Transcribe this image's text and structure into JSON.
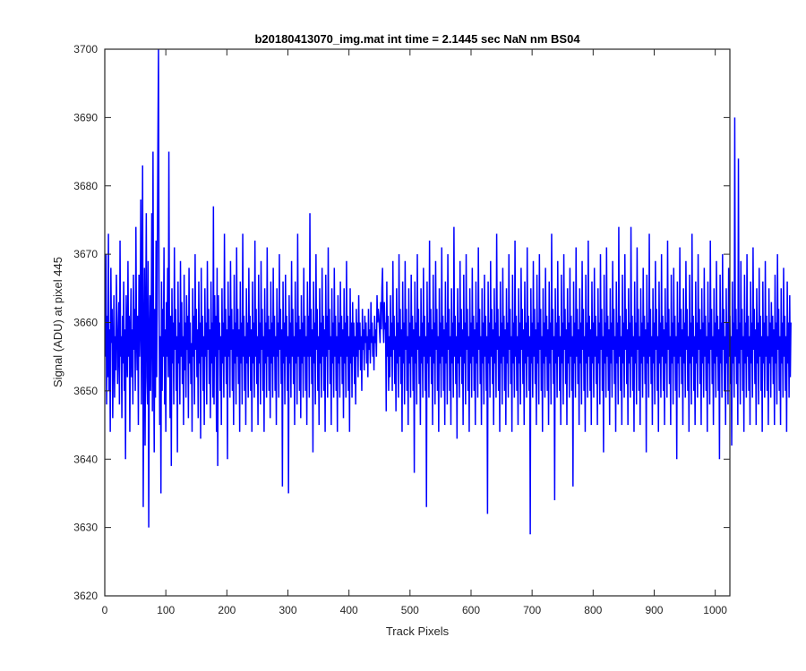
{
  "chart_data": {
    "type": "line",
    "title": "b20180413070_img.mat int time = 2.1445 sec  NaN nm BS04",
    "xlabel": "Track Pixels",
    "ylabel": "Signal (ADU) at pixel 445",
    "xlim": [
      0,
      1024
    ],
    "ylim": [
      3620,
      3700
    ],
    "x_ticks": [
      0,
      100,
      200,
      300,
      400,
      500,
      600,
      700,
      800,
      900,
      1000
    ],
    "y_ticks": [
      3620,
      3630,
      3640,
      3650,
      3660,
      3670,
      3680,
      3690,
      3700
    ],
    "grid": false,
    "legend": "none",
    "line_color": "#0000ff",
    "series": [
      {
        "x_start": 1,
        "x_step": 1,
        "values": [
          3655,
          3670,
          3648,
          3661,
          3652,
          3673,
          3650,
          3659,
          3644,
          3668,
          3657,
          3662,
          3646,
          3656,
          3664,
          3649,
          3658,
          3653,
          3667,
          3660,
          3651,
          3657,
          3663,
          3648,
          3672,
          3655,
          3658,
          3646,
          3661,
          3654,
          3666,
          3650,
          3659,
          3640,
          3664,
          3657,
          3652,
          3669,
          3655,
          3661,
          3644,
          3658,
          3665,
          3652,
          3659,
          3648,
          3667,
          3656,
          3662,
          3650,
          3674,
          3658,
          3653,
          3661,
          3645,
          3667,
          3655,
          3660,
          3678,
          3648,
          3664,
          3683,
          3633,
          3655,
          3668,
          3642,
          3660,
          3676,
          3652,
          3648,
          3669,
          3630,
          3658,
          3664,
          3650,
          3659,
          3676,
          3647,
          3685,
          3655,
          3641,
          3662,
          3649,
          3672,
          3652,
          3668,
          3686,
          3700,
          3661,
          3645,
          3658,
          3635,
          3666,
          3650,
          3662,
          3655,
          3671,
          3648,
          3659,
          3644,
          3663,
          3655,
          3668,
          3652,
          3685,
          3658,
          3646,
          3661,
          3639,
          3665,
          3654,
          3660,
          3648,
          3671,
          3656,
          3662,
          3650,
          3658,
          3641,
          3666,
          3654,
          3660,
          3648,
          3669,
          3655,
          3663,
          3651,
          3658,
          3645,
          3667,
          3653,
          3660,
          3649,
          3664,
          3656,
          3661,
          3646,
          3668,
          3654,
          3660,
          3651,
          3657,
          3644,
          3665,
          3655,
          3661,
          3648,
          3670,
          3656,
          3662,
          3652,
          3659,
          3646,
          3666,
          3654,
          3660,
          3643,
          3668,
          3655,
          3661,
          3650,
          3658,
          3645,
          3665,
          3655,
          3660,
          3648,
          3669,
          3656,
          3662,
          3651,
          3659,
          3646,
          3666,
          3654,
          3660,
          3649,
          3677,
          3648,
          3664,
          3655,
          3661,
          3644,
          3668,
          3639,
          3664,
          3656,
          3660,
          3650,
          3658,
          3645,
          3665,
          3654,
          3660,
          3649,
          3673,
          3655,
          3662,
          3651,
          3659,
          3640,
          3666,
          3655,
          3661,
          3649,
          3669,
          3656,
          3662,
          3650,
          3659,
          3645,
          3667,
          3654,
          3660,
          3648,
          3671,
          3655,
          3662,
          3651,
          3659,
          3644,
          3666,
          3654,
          3660,
          3648,
          3673,
          3655,
          3661,
          3650,
          3658,
          3645,
          3665,
          3654,
          3660,
          3649,
          3668,
          3655,
          3661,
          3650,
          3659,
          3644,
          3666,
          3654,
          3660,
          3649,
          3672,
          3655,
          3662,
          3651,
          3658,
          3645,
          3667,
          3654,
          3660,
          3648,
          3669,
          3656,
          3662,
          3650,
          3658,
          3644,
          3665,
          3654,
          3660,
          3649,
          3671,
          3655,
          3661,
          3650,
          3659,
          3646,
          3666,
          3654,
          3660,
          3649,
          3668,
          3655,
          3661,
          3650,
          3658,
          3645,
          3665,
          3655,
          3660,
          3649,
          3670,
          3656,
          3662,
          3651,
          3659,
          3636,
          3666,
          3654,
          3660,
          3648,
          3667,
          3655,
          3661,
          3650,
          3658,
          3635,
          3664,
          3654,
          3660,
          3649,
          3669,
          3655,
          3662,
          3651,
          3658,
          3645,
          3666,
          3654,
          3660,
          3648,
          3673,
          3655,
          3661,
          3650,
          3659,
          3646,
          3664,
          3654,
          3660,
          3649,
          3668,
          3655,
          3661,
          3650,
          3658,
          3645,
          3666,
          3655,
          3661,
          3649,
          3676,
          3655,
          3662,
          3651,
          3659,
          3641,
          3666,
          3654,
          3660,
          3648,
          3670,
          3656,
          3662,
          3650,
          3658,
          3645,
          3665,
          3654,
          3660,
          3649,
          3668,
          3655,
          3661,
          3650,
          3659,
          3644,
          3667,
          3655,
          3661,
          3649,
          3671,
          3656,
          3662,
          3651,
          3658,
          3645,
          3665,
          3654,
          3660,
          3649,
          3668,
          3655,
          3661,
          3650,
          3658,
          3644,
          3664,
          3654,
          3660,
          3649,
          3666,
          3655,
          3661,
          3651,
          3659,
          3646,
          3665,
          3654,
          3660,
          3649,
          3669,
          3655,
          3661,
          3650,
          3658,
          3644,
          3665,
          3654,
          3660,
          3649,
          3663,
          3655,
          3660,
          3651,
          3658,
          3648,
          3662,
          3655,
          3660,
          3652,
          3664,
          3656,
          3660,
          3653,
          3658,
          3650,
          3662,
          3656,
          3659,
          3653,
          3661,
          3657,
          3660,
          3654,
          3658,
          3652,
          3662,
          3656,
          3659,
          3654,
          3663,
          3657,
          3660,
          3655,
          3658,
          3653,
          3661,
          3657,
          3659,
          3655,
          3664,
          3660,
          3662,
          3661,
          3659,
          3657,
          3663,
          3659,
          3665,
          3668,
          3660,
          3657,
          3663,
          3659,
          3660,
          3647,
          3666,
          3655,
          3661,
          3650,
          3658,
          3652,
          3664,
          3655,
          3660,
          3650,
          3669,
          3656,
          3661,
          3651,
          3658,
          3647,
          3665,
          3654,
          3660,
          3649,
          3670,
          3655,
          3662,
          3651,
          3659,
          3644,
          3666,
          3654,
          3660,
          3648,
          3669,
          3656,
          3662,
          3650,
          3658,
          3645,
          3665,
          3654,
          3660,
          3649,
          3667,
          3655,
          3661,
          3650,
          3659,
          3638,
          3666,
          3654,
          3660,
          3648,
          3670,
          3656,
          3662,
          3651,
          3658,
          3645,
          3665,
          3654,
          3660,
          3649,
          3668,
          3655,
          3661,
          3650,
          3658,
          3633,
          3666,
          3654,
          3660,
          3649,
          3672,
          3655,
          3662,
          3651,
          3659,
          3645,
          3667,
          3654,
          3660,
          3648,
          3669,
          3656,
          3662,
          3650,
          3658,
          3644,
          3665,
          3654,
          3660,
          3649,
          3671,
          3655,
          3661,
          3650,
          3659,
          3645,
          3666,
          3654,
          3660,
          3648,
          3670,
          3656,
          3662,
          3650,
          3658,
          3645,
          3665,
          3654,
          3660,
          3649,
          3674,
          3655,
          3661,
          3651,
          3658,
          3643,
          3665,
          3654,
          3660,
          3649,
          3669,
          3655,
          3662,
          3651,
          3659,
          3645,
          3667,
          3654,
          3660,
          3648,
          3670,
          3656,
          3662,
          3650,
          3658,
          3644,
          3665,
          3654,
          3660,
          3649,
          3668,
          3655,
          3661,
          3650,
          3659,
          3645,
          3666,
          3654,
          3660,
          3649,
          3671,
          3656,
          3662,
          3651,
          3658,
          3645,
          3665,
          3654,
          3660,
          3648,
          3667,
          3655,
          3661,
          3650,
          3658,
          3632,
          3666,
          3654,
          3660,
          3649,
          3669,
          3655,
          3662,
          3651,
          3659,
          3645,
          3665,
          3654,
          3660,
          3649,
          3673,
          3656,
          3662,
          3650,
          3658,
          3644,
          3666,
          3654,
          3660,
          3648,
          3668,
          3655,
          3661,
          3650,
          3659,
          3645,
          3665,
          3654,
          3660,
          3649,
          3670,
          3656,
          3662,
          3651,
          3658,
          3644,
          3667,
          3654,
          3660,
          3649,
          3672,
          3655,
          3661,
          3650,
          3658,
          3645,
          3665,
          3654,
          3660,
          3648,
          3668,
          3656,
          3662,
          3651,
          3659,
          3645,
          3666,
          3654,
          3660,
          3649,
          3671,
          3655,
          3661,
          3650,
          3658,
          3629,
          3665,
          3654,
          3660,
          3649,
          3669,
          3655,
          3662,
          3651,
          3659,
          3645,
          3667,
          3654,
          3660,
          3648,
          3670,
          3656,
          3662,
          3650,
          3658,
          3644,
          3665,
          3654,
          3660,
          3649,
          3668,
          3655,
          3661,
          3650,
          3659,
          3645,
          3666,
          3654,
          3660,
          3648,
          3673,
          3656,
          3662,
          3651,
          3658,
          3634,
          3665,
          3654,
          3660,
          3649,
          3669,
          3655,
          3661,
          3650,
          3658,
          3645,
          3667,
          3654,
          3660,
          3648,
          3670,
          3656,
          3662,
          3651,
          3659,
          3645,
          3665,
          3654,
          3660,
          3649,
          3668,
          3655,
          3661,
          3650,
          3658,
          3636,
          3666,
          3654,
          3660,
          3649,
          3671,
          3655,
          3662,
          3651,
          3659,
          3645,
          3665,
          3654,
          3660,
          3648,
          3669,
          3656,
          3662,
          3650,
          3658,
          3644,
          3667,
          3654,
          3660,
          3649,
          3672,
          3655,
          3661,
          3650,
          3659,
          3645,
          3666,
          3654,
          3660,
          3649,
          3668,
          3655,
          3661,
          3651,
          3658,
          3645,
          3665,
          3654,
          3660,
          3648,
          3670,
          3656,
          3662,
          3650,
          3658,
          3641,
          3667,
          3654,
          3660,
          3649,
          3671,
          3655,
          3661,
          3650,
          3659,
          3645,
          3665,
          3654,
          3660,
          3649,
          3669,
          3656,
          3662,
          3651,
          3658,
          3644,
          3666,
          3654,
          3660,
          3648,
          3674,
          3655,
          3661,
          3650,
          3658,
          3645,
          3667,
          3654,
          3660,
          3649,
          3670,
          3656,
          3662,
          3651,
          3659,
          3645,
          3665,
          3654,
          3660,
          3649,
          3674,
          3655,
          3661,
          3650,
          3658,
          3644,
          3666,
          3654,
          3660,
          3648,
          3671,
          3656,
          3662,
          3650,
          3658,
          3645,
          3665,
          3654,
          3660,
          3649,
          3668,
          3655,
          3661,
          3651,
          3659,
          3641,
          3667,
          3654,
          3660,
          3649,
          3673,
          3655,
          3662,
          3651,
          3658,
          3645,
          3665,
          3654,
          3660,
          3648,
          3669,
          3656,
          3662,
          3650,
          3658,
          3644,
          3666,
          3654,
          3660,
          3649,
          3670,
          3655,
          3661,
          3650,
          3659,
          3645,
          3665,
          3654,
          3660,
          3649,
          3672,
          3656,
          3662,
          3651,
          3658,
          3645,
          3667,
          3654,
          3660,
          3648,
          3668,
          3655,
          3661,
          3650,
          3658,
          3640,
          3666,
          3654,
          3660,
          3649,
          3671,
          3655,
          3662,
          3651,
          3659,
          3645,
          3665,
          3654,
          3660,
          3649,
          3669,
          3656,
          3662,
          3650,
          3658,
          3644,
          3667,
          3654,
          3660,
          3648,
          3673,
          3655,
          3661,
          3650,
          3658,
          3645,
          3666,
          3654,
          3660,
          3649,
          3670,
          3656,
          3662,
          3651,
          3659,
          3645,
          3665,
          3654,
          3660,
          3649,
          3668,
          3655,
          3661,
          3650,
          3658,
          3644,
          3666,
          3654,
          3660,
          3648,
          3672,
          3656,
          3662,
          3651,
          3658,
          3645,
          3665,
          3654,
          3660,
          3649,
          3669,
          3655,
          3661,
          3650,
          3659,
          3640,
          3667,
          3654,
          3660,
          3649,
          3670,
          3656,
          3662,
          3650,
          3658,
          3645,
          3665,
          3654,
          3660,
          3648,
          3668,
          3655,
          3661,
          3651,
          3658,
          3642,
          3666,
          3654,
          3660,
          3649,
          3690,
          3655,
          3662,
          3651,
          3659,
          3645,
          3684,
          3654,
          3660,
          3648,
          3669,
          3656,
          3662,
          3650,
          3658,
          3644,
          3667,
          3654,
          3660,
          3649,
          3670,
          3655,
          3661,
          3650,
          3658,
          3645,
          3666,
          3654,
          3660,
          3649,
          3671,
          3656,
          3662,
          3651,
          3659,
          3645,
          3665,
          3654,
          3660,
          3648,
          3668,
          3655,
          3661,
          3650,
          3658,
          3644,
          3666,
          3654,
          3660,
          3649,
          3669,
          3655,
          3661,
          3650,
          3658,
          3645,
          3665,
          3654,
          3660,
          3649,
          3663,
          3655,
          3661,
          3651,
          3659,
          3645,
          3667,
          3654,
          3660,
          3648,
          3670,
          3656,
          3662,
          3650,
          3658,
          3645,
          3665,
          3654,
          3660,
          3649,
          3668,
          3655,
          3661,
          3650,
          3658,
          3644,
          3666,
          3654,
          3660,
          3649,
          3664,
          3652,
          3660
        ]
      }
    ]
  }
}
